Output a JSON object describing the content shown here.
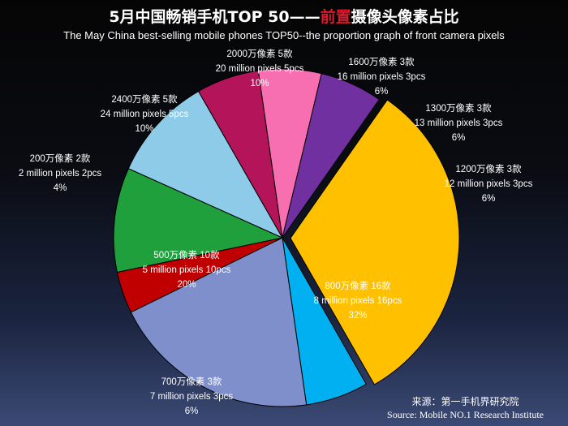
{
  "title": {
    "prefix": "5月中国畅销手机TOP 50——",
    "highlight": "前置",
    "suffix": "摄像头像素占比",
    "english": "The May China best-selling mobile phones TOP50--the proportion graph of front camera pixels"
  },
  "source": {
    "cn": "来源：第一手机界研究院",
    "en": "Source: Mobile NO.1 Research Institute"
  },
  "colors": {
    "label_light": "#ffffff",
    "label_dark": "#1a1a1a"
  },
  "chart_data": {
    "type": "pie",
    "slices": [
      {
        "cn": "800万像素 16款",
        "en": "8 million pixels 16pcs",
        "pct": "32%",
        "value": 32,
        "color": "#ffc000"
      },
      {
        "cn": "700万像素 3款",
        "en": "7 million pixels 3pcs",
        "pct": "6%",
        "value": 6,
        "color": "#00b0f0"
      },
      {
        "cn": "500万像素 10款",
        "en": "5 million pixels 10pcs",
        "pct": "20%",
        "value": 20,
        "color": "#7f8fcc"
      },
      {
        "cn": "200万像素 2款",
        "en": "2 million pixels 2pcs",
        "pct": "4%",
        "value": 4,
        "color": "#c00000"
      },
      {
        "cn": "2400万像素 5款",
        "en": "24 million pixels 5pcs",
        "pct": "10%",
        "value": 10,
        "color": "#1fa03c"
      },
      {
        "cn": "2000万像素 5款",
        "en": "20 million pixels 5pcs",
        "pct": "10%",
        "value": 10,
        "color": "#8dcbe8"
      },
      {
        "cn": "1600万像素 3款",
        "en": "16 million pixels 3pcs",
        "pct": "6%",
        "value": 6,
        "color": "#b3145a"
      },
      {
        "cn": "1300万像素 3款",
        "en": "13 million pixels 3pcs",
        "pct": "6%",
        "value": 6,
        "color": "#f76fb1"
      },
      {
        "cn": "1200万像素 3款",
        "en": "12 million pixels 3pcs",
        "pct": "6%",
        "value": 6,
        "color": "#7030a0"
      }
    ]
  }
}
